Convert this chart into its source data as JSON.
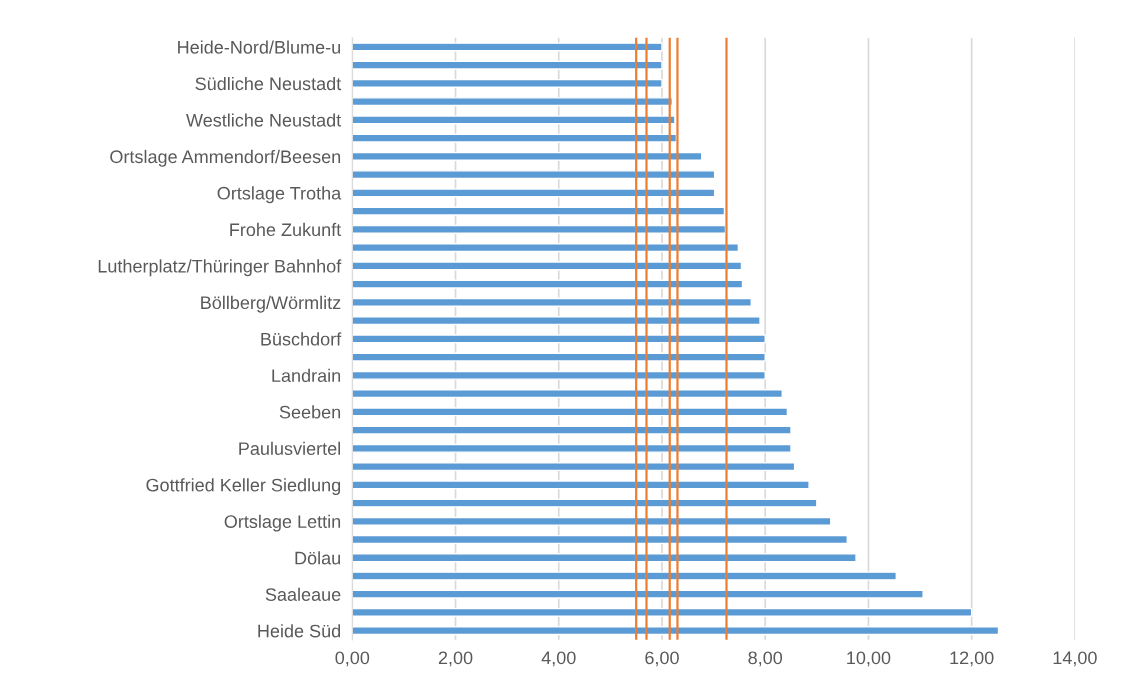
{
  "chart_data": {
    "type": "bar",
    "orientation": "horizontal",
    "categories": [
      "Heide-Nord/Blume-u",
      null,
      "Südliche Neustadt",
      null,
      "Westliche Neustadt",
      null,
      "Ortslage Ammendorf/Beesen",
      null,
      "Ortslage Trotha",
      null,
      "Frohe Zukunft",
      null,
      "Lutherplatz/Thüringer Bahnhof",
      null,
      "Böllberg/Wörmlitz",
      null,
      "Büschdorf",
      null,
      "Landrain",
      null,
      "Seeben",
      null,
      "Paulusviertel",
      null,
      "Gottfried Keller Siedlung",
      null,
      "Ortslage Lettin",
      null,
      "Dölau",
      null,
      "Saaleaue",
      null,
      "Heide Süd"
    ],
    "values": [
      6.0,
      6.0,
      6.0,
      6.2,
      6.25,
      6.28,
      6.77,
      7.02,
      7.02,
      7.21,
      7.23,
      7.48,
      7.54,
      7.56,
      7.73,
      7.9,
      8.0,
      8.0,
      8.0,
      8.33,
      8.43,
      8.5,
      8.5,
      8.57,
      8.85,
      9.0,
      9.27,
      9.59,
      9.76,
      10.54,
      11.06,
      12.0,
      12.52
    ],
    "color": "#5b9bd5",
    "xlim": [
      0,
      14
    ],
    "xticks": [
      {
        "value": 0,
        "label": "0,00"
      },
      {
        "value": 2,
        "label": "2,00"
      },
      {
        "value": 4,
        "label": "4,00"
      },
      {
        "value": 6,
        "label": "6,00"
      },
      {
        "value": 8,
        "label": "8,00"
      },
      {
        "value": 10,
        "label": "10,00"
      },
      {
        "value": 12,
        "label": "12,00"
      },
      {
        "value": 14,
        "label": "14,00"
      }
    ],
    "grid": "x",
    "ref_lines": [
      {
        "axis": "x",
        "value": 5.5,
        "color": "#ed7d31"
      },
      {
        "axis": "x",
        "value": 5.7,
        "color": "#ed7d31"
      },
      {
        "axis": "x",
        "value": 6.15,
        "color": "#ed7d31"
      },
      {
        "axis": "x",
        "value": 6.3,
        "color": "#ed7d31"
      },
      {
        "axis": "x",
        "value": 7.25,
        "color": "#ed7d31"
      }
    ]
  }
}
